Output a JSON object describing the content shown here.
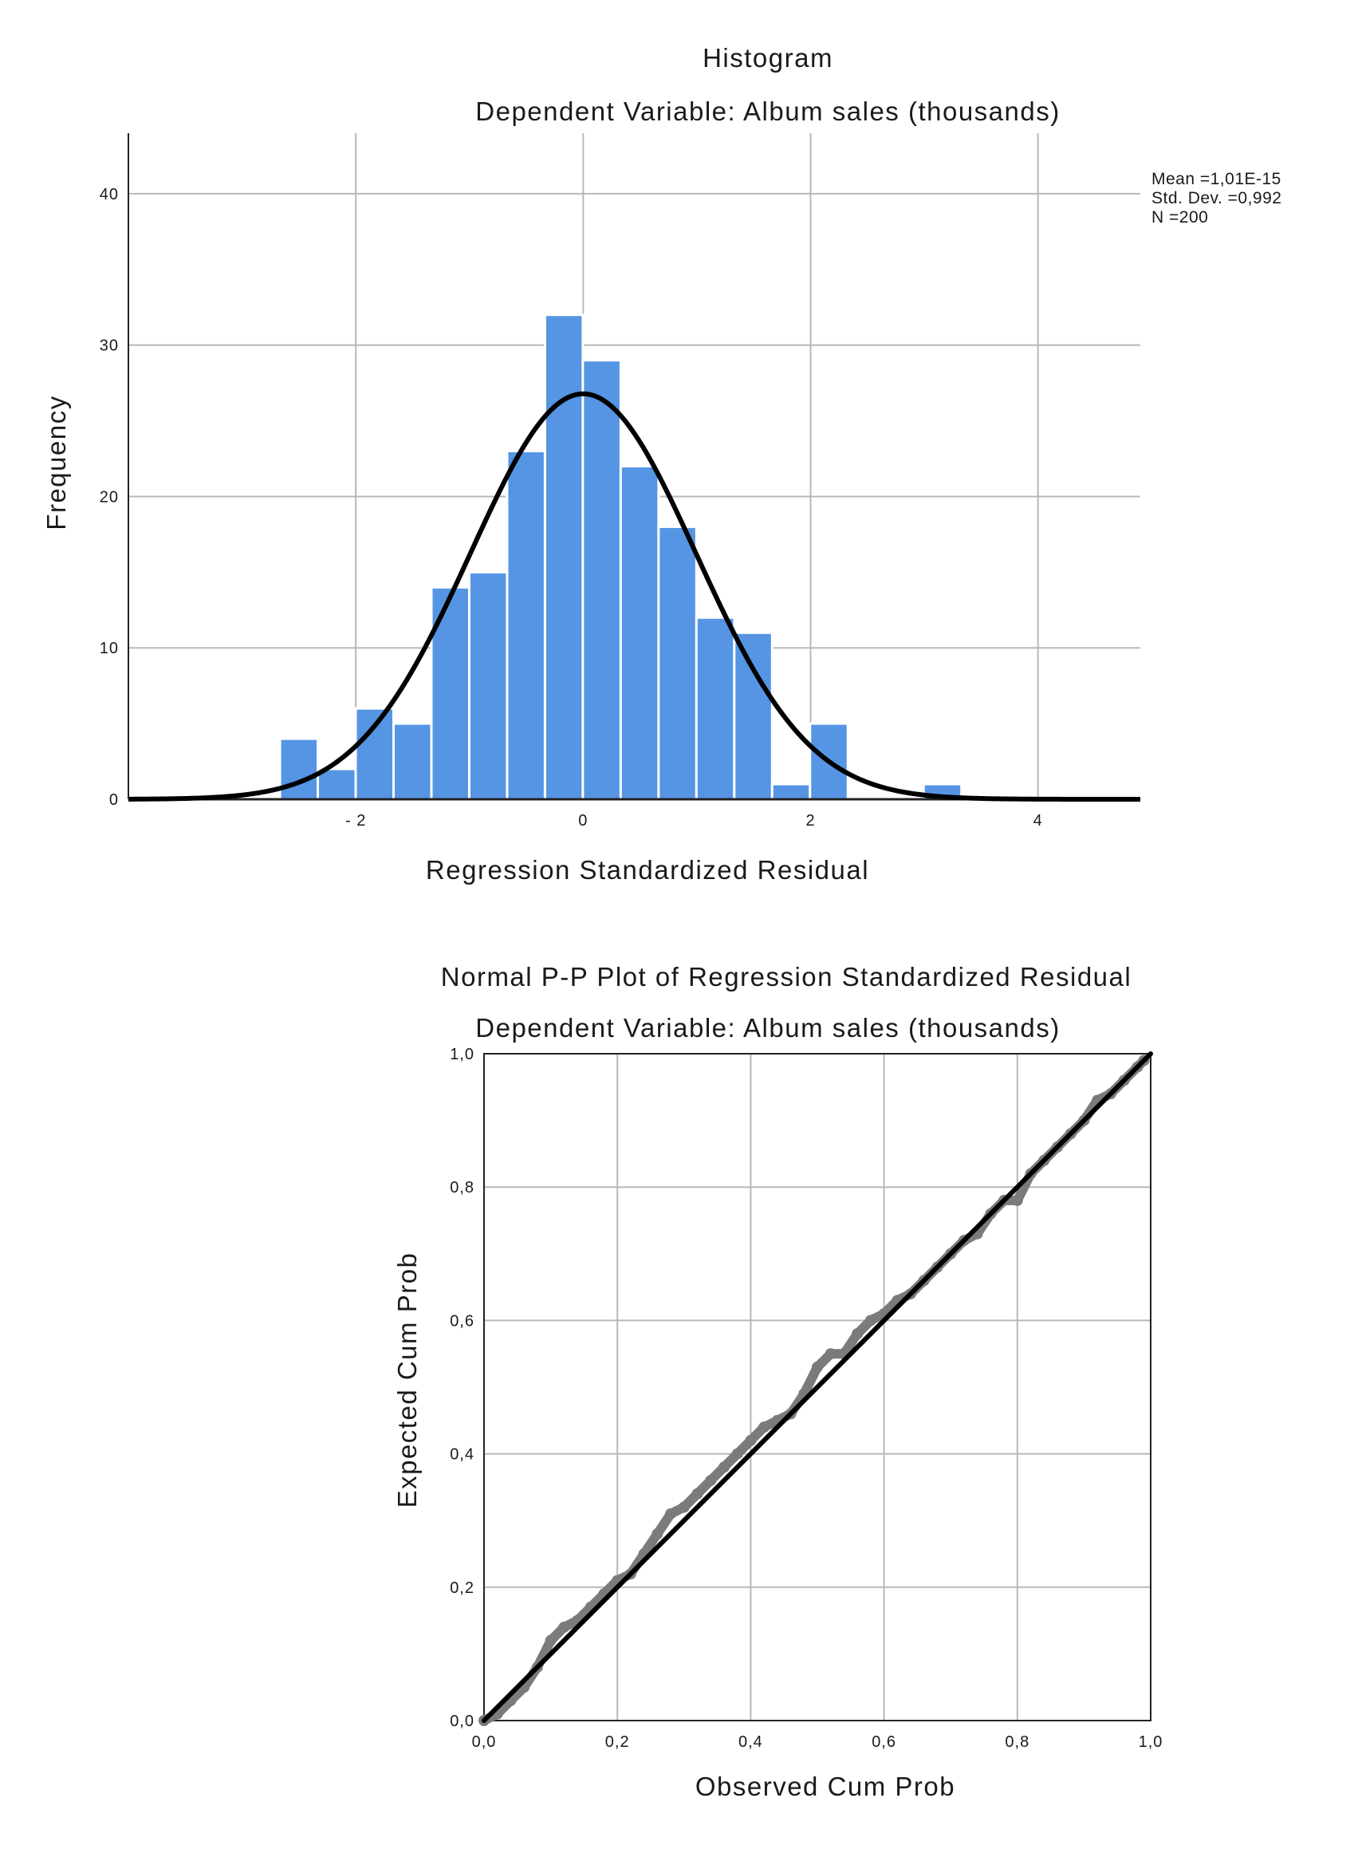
{
  "colors": {
    "background": "#ffffff",
    "bar_fill": "#5595e3",
    "bar_edge": "#ffffff",
    "curve": "#000000",
    "points": "#7b7b7b",
    "grid": "#b8b8b8"
  },
  "chart_data": [
    {
      "type": "bar",
      "subtype": "histogram",
      "title": "Histogram",
      "subtitle": "Dependent Variable: Album sales (thousands)",
      "xlabel": "Regression Standardized Residual",
      "ylabel": "Frequency",
      "xlim": [
        -4.0,
        4.9
      ],
      "ylim": [
        0,
        44
      ],
      "x_ticks": [
        -2,
        0,
        2,
        4
      ],
      "x_tick_labels": [
        "- 2",
        "0",
        "2",
        "4"
      ],
      "y_ticks": [
        0,
        10,
        20,
        30,
        40
      ],
      "y_tick_labels": [
        "0",
        "10",
        "20",
        "30",
        "40"
      ],
      "grid": true,
      "bin_width": 0.333,
      "bin_start": -2.667,
      "counts": [
        4,
        2,
        6,
        5,
        14,
        15,
        23,
        32,
        29,
        22,
        18,
        12,
        11,
        1,
        5,
        0,
        0,
        1
      ],
      "normal_curve": {
        "mean": 0.0,
        "sd": 0.992,
        "n": 200
      },
      "stats": {
        "mean": "Mean =1,01E-15",
        "std_dev": "Std. Dev. =0,992",
        "n": "N =200"
      }
    },
    {
      "type": "scatter",
      "title": "Normal P-P Plot of Regression Standardized Residual",
      "subtitle": "Dependent Variable: Album sales (thousands)",
      "xlabel": "Observed Cum Prob",
      "ylabel": "Expected Cum Prob",
      "xlim": [
        0,
        1
      ],
      "ylim": [
        0,
        1
      ],
      "x_tick_labels": [
        "0,0",
        "0,2",
        "0,4",
        "0,6",
        "0,8",
        "1,0"
      ],
      "y_tick_labels": [
        "0,0",
        "0,2",
        "0,4",
        "0,6",
        "0,8",
        "1,0"
      ],
      "grid": true,
      "reference_line": [
        [
          0,
          0
        ],
        [
          1,
          1
        ]
      ],
      "points": [
        [
          0.0,
          0.0
        ],
        [
          0.02,
          0.01
        ],
        [
          0.04,
          0.03
        ],
        [
          0.06,
          0.05
        ],
        [
          0.08,
          0.08
        ],
        [
          0.1,
          0.12
        ],
        [
          0.12,
          0.14
        ],
        [
          0.14,
          0.15
        ],
        [
          0.16,
          0.17
        ],
        [
          0.18,
          0.19
        ],
        [
          0.2,
          0.21
        ],
        [
          0.22,
          0.22
        ],
        [
          0.24,
          0.25
        ],
        [
          0.26,
          0.28
        ],
        [
          0.28,
          0.31
        ],
        [
          0.3,
          0.32
        ],
        [
          0.32,
          0.34
        ],
        [
          0.34,
          0.36
        ],
        [
          0.36,
          0.38
        ],
        [
          0.38,
          0.4
        ],
        [
          0.4,
          0.42
        ],
        [
          0.42,
          0.44
        ],
        [
          0.44,
          0.45
        ],
        [
          0.46,
          0.46
        ],
        [
          0.48,
          0.49
        ],
        [
          0.5,
          0.53
        ],
        [
          0.52,
          0.55
        ],
        [
          0.54,
          0.55
        ],
        [
          0.56,
          0.58
        ],
        [
          0.58,
          0.6
        ],
        [
          0.6,
          0.61
        ],
        [
          0.62,
          0.63
        ],
        [
          0.64,
          0.64
        ],
        [
          0.66,
          0.66
        ],
        [
          0.68,
          0.68
        ],
        [
          0.7,
          0.7
        ],
        [
          0.72,
          0.72
        ],
        [
          0.74,
          0.73
        ],
        [
          0.76,
          0.76
        ],
        [
          0.78,
          0.78
        ],
        [
          0.8,
          0.78
        ],
        [
          0.82,
          0.82
        ],
        [
          0.84,
          0.84
        ],
        [
          0.86,
          0.86
        ],
        [
          0.88,
          0.88
        ],
        [
          0.9,
          0.9
        ],
        [
          0.92,
          0.93
        ],
        [
          0.94,
          0.94
        ],
        [
          0.96,
          0.96
        ],
        [
          0.98,
          0.98
        ],
        [
          0.99,
          0.99
        ]
      ]
    }
  ]
}
